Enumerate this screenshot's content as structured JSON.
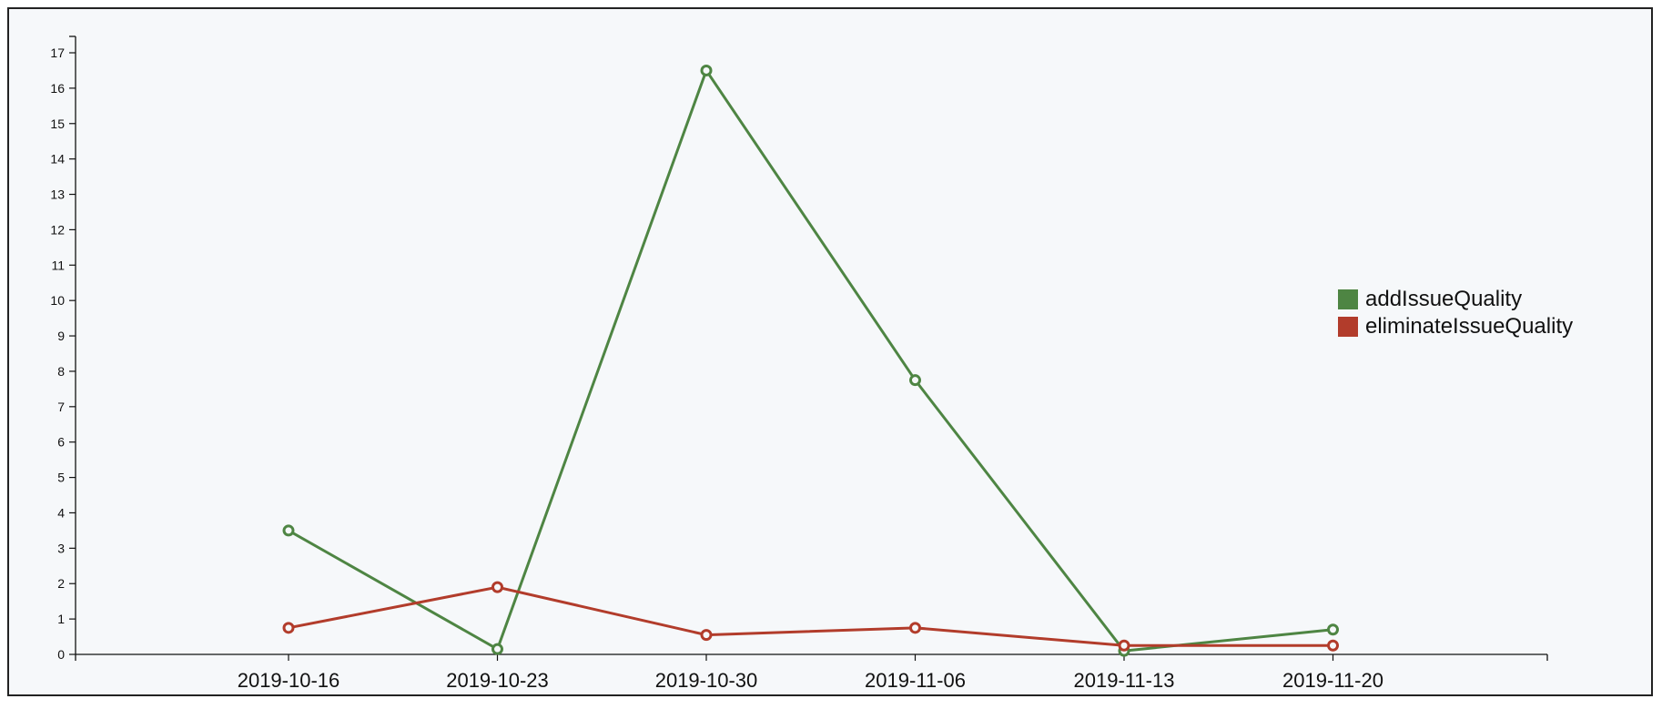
{
  "chart_data": {
    "type": "line",
    "x": [
      "2019-10-16",
      "2019-10-23",
      "2019-10-30",
      "2019-11-06",
      "2019-11-13",
      "2019-11-20"
    ],
    "series": [
      {
        "name": "addIssueQuality",
        "color": "#4e8543",
        "values": [
          3.5,
          0.15,
          16.5,
          7.75,
          0.1,
          0.7
        ]
      },
      {
        "name": "eliminateIssueQuality",
        "color": "#b23c2b",
        "values": [
          0.75,
          1.9,
          0.55,
          0.75,
          0.25,
          0.25
        ]
      }
    ],
    "ylim": [
      0,
      17
    ],
    "yticks": [
      0,
      1,
      2,
      3,
      4,
      5,
      6,
      7,
      8,
      9,
      10,
      11,
      12,
      13,
      14,
      15,
      16,
      17
    ],
    "title": "",
    "xlabel": "",
    "ylabel": "",
    "legend": "right",
    "grid": false
  }
}
